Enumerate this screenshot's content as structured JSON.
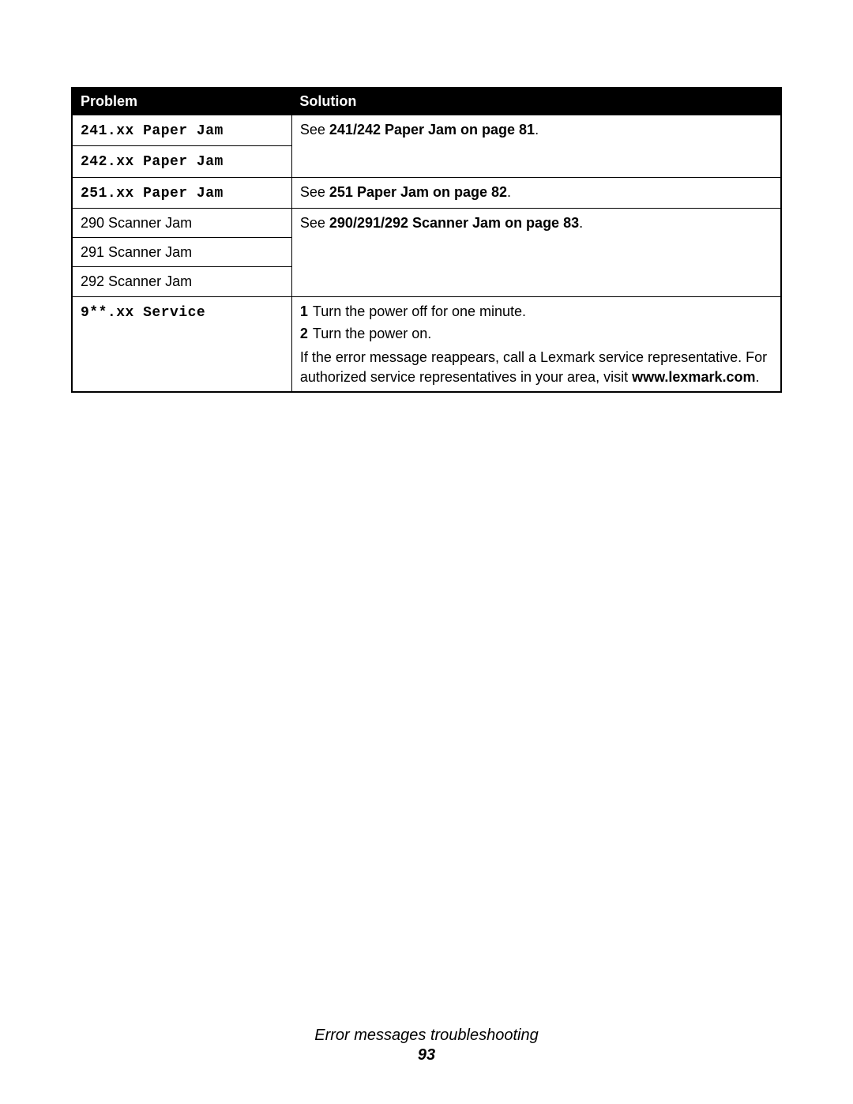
{
  "table": {
    "headers": {
      "problem": "Problem",
      "solution": "Solution"
    },
    "rows": {
      "r1": {
        "problem": "241.xx Paper Jam",
        "see_prefix": "See ",
        "see_bold": "241/242 Paper Jam on page 81",
        "see_suffix": "."
      },
      "r2": {
        "problem": "242.xx Paper Jam"
      },
      "r3": {
        "problem": "251.xx Paper Jam",
        "see_prefix": "See ",
        "see_bold": "251 Paper Jam on page 82",
        "see_suffix": "."
      },
      "r4": {
        "problem": "290 Scanner Jam",
        "see_prefix": "See ",
        "see_bold": "290/291/292 Scanner Jam on page 83",
        "see_suffix": "."
      },
      "r5": {
        "problem": "291 Scanner Jam"
      },
      "r6": {
        "problem": "292 Scanner Jam"
      },
      "r7": {
        "problem": "9**.xx Service",
        "step1_num": "1",
        "step1_text": "Turn the power off for one minute.",
        "step2_num": "2",
        "step2_text": "Turn the power on.",
        "extra_text": "If the error message reappears, call a Lexmark service representative. For authorized service representatives in your area, visit ",
        "extra_bold": "www.lexmark.com",
        "extra_suffix": "."
      }
    }
  },
  "footer": {
    "section_title": "Error messages troubleshooting",
    "page_number": "93"
  }
}
